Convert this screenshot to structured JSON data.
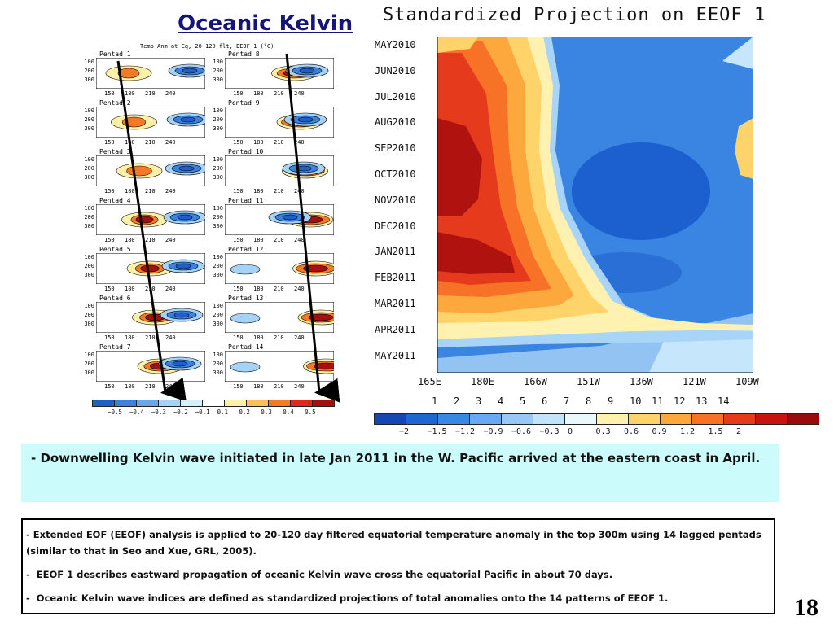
{
  "slide": {
    "title": "Oceanic Kelvin",
    "page_number": "18"
  },
  "left_panel": {
    "title": "Temp Anm at Eq, 20-120 flt, EEOF 1  (°C)",
    "y_ticks": [
      "100",
      "200",
      "300"
    ],
    "x_ticks": [
      "150",
      "180",
      "210",
      "240"
    ],
    "pentads_left": [
      "Pentad  1",
      "Pentad  2",
      "Pentad  3",
      "Pentad  4",
      "Pentad  5",
      "Pentad  6",
      "Pentad  7"
    ],
    "pentads_right": [
      "Pentad  8",
      "Pentad  9",
      "Pentad  10",
      "Pentad  11",
      "Pentad  12",
      "Pentad  13",
      "Pentad  14"
    ],
    "colorbar": {
      "labels": [
        "−0.5",
        "−0.4",
        "−0.3",
        "−0.2",
        "−0.1",
        "0.1",
        "0.2",
        "0.3",
        "0.4",
        "0.5"
      ],
      "colors": [
        "#1f5fc8",
        "#3a82de",
        "#6aa6ec",
        "#a6d2f6",
        "#d4f0fb",
        "#ffffff",
        "#fff0a8",
        "#fdbd5a",
        "#f57a26",
        "#e0281c",
        "#a3100f"
      ]
    }
  },
  "right_panel": {
    "title": "Standardized Projection on EEOF 1",
    "y_labels": [
      "MAY2010",
      "JUN2010",
      "JUL2010",
      "AUG2010",
      "SEP2010",
      "OCT2010",
      "NOV2010",
      "DEC2010",
      "JAN2011",
      "FEB2011",
      "MAR2011",
      "APR2011",
      "MAY2011"
    ],
    "x_labels": [
      "165E",
      "180E",
      "166W",
      "151W",
      "136W",
      "121W",
      "109W"
    ],
    "index_labels": [
      "1",
      "2",
      "3",
      "4",
      "5",
      "6",
      "7",
      "8",
      "9",
      "10",
      "11",
      "12",
      "13",
      "14"
    ],
    "colorbar": {
      "labels": [
        "−2",
        "−1.5",
        "−1.2",
        "−0.9",
        "−0.6",
        "−0.3",
        "0",
        "0.3",
        "0.6",
        "0.9",
        "1.2",
        "1.5",
        "2"
      ],
      "colors": [
        "#1446b4",
        "#1f66d0",
        "#3c86e4",
        "#6aa8ef",
        "#98c8f6",
        "#c2e3fa",
        "#e8f8fc",
        "#fff2b0",
        "#fed36a",
        "#fca83c",
        "#f77226",
        "#e63a1c",
        "#c8140f",
        "#9a0c0c"
      ]
    }
  },
  "highlight_text": "Downwelling Kelvin wave initiated in late Jan 2011 in the W. Pacific arrived at the eastern coast in April.",
  "highlight_dash": "-",
  "notes": [
    {
      "dash": "-",
      "text": "Extended EOF (EEOF) analysis is applied to 20-120 day filtered equatorial temperature anomaly in the top 300m using 14 lagged pentads (similar to that in Seo and Xue, GRL, 2005)."
    },
    {
      "dash": "-",
      "text": "EEOF 1 describes eastward propagation of  oceanic Kelvin wave cross the equatorial Pacific in about  70 days."
    },
    {
      "dash": "-",
      "text": "Oceanic Kelvin wave indices are defined as standardized projections of total anomalies onto the 14 patterns of  EEOF 1."
    }
  ]
}
